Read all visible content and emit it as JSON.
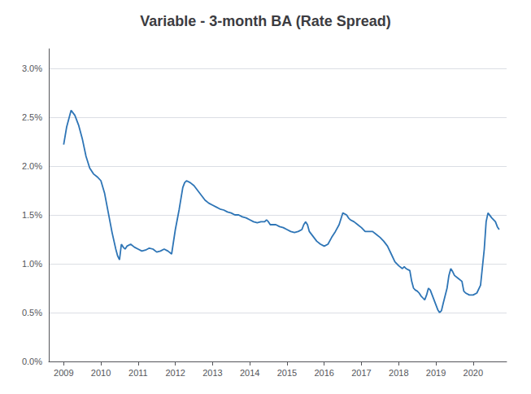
{
  "chart_data": {
    "type": "line",
    "title": "Variable - 3-month BA (Rate Spread)",
    "color": "#2E75B6",
    "grid": true,
    "xlim": [
      2008.6,
      2020.9
    ],
    "xticks": [
      2009,
      2010,
      2011,
      2012,
      2013,
      2014,
      2015,
      2016,
      2017,
      2018,
      2019,
      2020
    ],
    "ylim": [
      0.0,
      0.032
    ],
    "yticks": [
      {
        "value": 0.0,
        "label": "0.0%"
      },
      {
        "value": 0.005,
        "label": "0.5%"
      },
      {
        "value": 0.01,
        "label": "1.0%"
      },
      {
        "value": 0.015,
        "label": "1.5%"
      },
      {
        "value": 0.02,
        "label": "2.0%"
      },
      {
        "value": 0.025,
        "label": "2.5%"
      },
      {
        "value": 0.03,
        "label": "3.0%"
      }
    ],
    "x": [
      2009.0,
      2009.08,
      2009.15,
      2009.2,
      2009.3,
      2009.4,
      2009.5,
      2009.6,
      2009.7,
      2009.8,
      2009.9,
      2010.0,
      2010.1,
      2010.2,
      2010.3,
      2010.4,
      2010.45,
      2010.5,
      2010.55,
      2010.6,
      2010.65,
      2010.7,
      2010.8,
      2010.9,
      2011.0,
      2011.1,
      2011.2,
      2011.3,
      2011.4,
      2011.5,
      2011.6,
      2011.7,
      2011.8,
      2011.9,
      2012.0,
      2012.1,
      2012.2,
      2012.25,
      2012.3,
      2012.4,
      2012.5,
      2012.6,
      2012.7,
      2012.8,
      2012.9,
      2013.0,
      2013.1,
      2013.2,
      2013.3,
      2013.4,
      2013.5,
      2013.6,
      2013.7,
      2013.8,
      2013.9,
      2014.0,
      2014.1,
      2014.2,
      2014.3,
      2014.4,
      2014.45,
      2014.5,
      2014.55,
      2014.6,
      2014.7,
      2014.8,
      2014.9,
      2015.0,
      2015.1,
      2015.2,
      2015.3,
      2015.4,
      2015.45,
      2015.5,
      2015.55,
      2015.6,
      2015.7,
      2015.8,
      2015.9,
      2016.0,
      2016.1,
      2016.2,
      2016.3,
      2016.4,
      2016.5,
      2016.6,
      2016.65,
      2016.7,
      2016.8,
      2016.9,
      2017.0,
      2017.1,
      2017.2,
      2017.3,
      2017.4,
      2017.5,
      2017.6,
      2017.7,
      2017.8,
      2017.9,
      2018.0,
      2018.1,
      2018.15,
      2018.2,
      2018.3,
      2018.35,
      2018.4,
      2018.45,
      2018.5,
      2018.55,
      2018.6,
      2018.65,
      2018.7,
      2018.75,
      2018.8,
      2018.85,
      2018.9,
      2018.95,
      2019.0,
      2019.05,
      2019.1,
      2019.15,
      2019.2,
      2019.3,
      2019.35,
      2019.4,
      2019.45,
      2019.5,
      2019.6,
      2019.7,
      2019.75,
      2019.8,
      2019.9,
      2020.0,
      2020.1,
      2020.2,
      2020.3,
      2020.35,
      2020.4,
      2020.5,
      2020.6,
      2020.65,
      2020.7
    ],
    "values": [
      0.0222,
      0.024,
      0.025,
      0.0257,
      0.0252,
      0.0242,
      0.0228,
      0.021,
      0.0198,
      0.0192,
      0.0189,
      0.0185,
      0.0172,
      0.0152,
      0.0132,
      0.0115,
      0.0108,
      0.0104,
      0.012,
      0.0117,
      0.0115,
      0.0118,
      0.012,
      0.0117,
      0.0115,
      0.0113,
      0.0114,
      0.0116,
      0.0115,
      0.0112,
      0.0113,
      0.0115,
      0.0113,
      0.011,
      0.0135,
      0.0155,
      0.0178,
      0.0183,
      0.0185,
      0.0183,
      0.018,
      0.0175,
      0.017,
      0.0165,
      0.0162,
      0.016,
      0.0158,
      0.0156,
      0.0155,
      0.0153,
      0.0152,
      0.015,
      0.015,
      0.0148,
      0.0147,
      0.0145,
      0.0143,
      0.0142,
      0.0143,
      0.0143,
      0.0145,
      0.0143,
      0.014,
      0.014,
      0.014,
      0.0138,
      0.0137,
      0.0135,
      0.0133,
      0.0132,
      0.0133,
      0.0135,
      0.014,
      0.0143,
      0.014,
      0.0133,
      0.0128,
      0.0123,
      0.012,
      0.0118,
      0.012,
      0.0127,
      0.0133,
      0.014,
      0.0152,
      0.015,
      0.0147,
      0.0145,
      0.0143,
      0.014,
      0.0137,
      0.0133,
      0.0133,
      0.0133,
      0.013,
      0.0127,
      0.0123,
      0.0118,
      0.011,
      0.0102,
      0.0098,
      0.0095,
      0.0097,
      0.0095,
      0.0093,
      0.0082,
      0.0075,
      0.0073,
      0.0072,
      0.007,
      0.0067,
      0.0065,
      0.0063,
      0.0068,
      0.0075,
      0.0073,
      0.0068,
      0.0063,
      0.0058,
      0.0053,
      0.005,
      0.0052,
      0.006,
      0.0075,
      0.0088,
      0.0095,
      0.0092,
      0.0088,
      0.0085,
      0.0082,
      0.0072,
      0.007,
      0.0068,
      0.0068,
      0.007,
      0.0078,
      0.0115,
      0.0143,
      0.0152,
      0.0147,
      0.0143,
      0.0138,
      0.0135
    ]
  }
}
